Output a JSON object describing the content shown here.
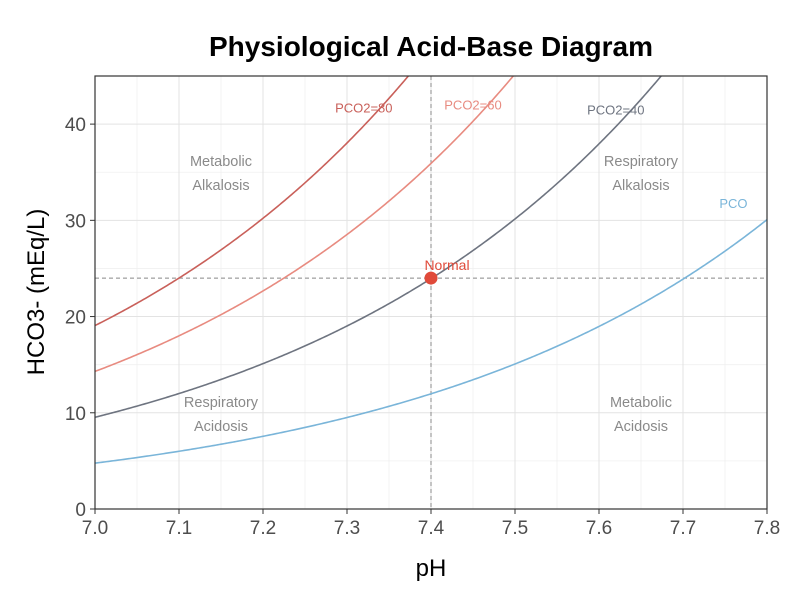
{
  "chart_data": {
    "type": "line",
    "title": "Physiological Acid-Base Diagram",
    "xlabel": "pH",
    "ylabel": "HCO3- (mEq/L)",
    "xlim": [
      7.0,
      7.8
    ],
    "ylim": [
      0,
      45
    ],
    "x_ticks": [
      "7.0",
      "7.1",
      "7.2",
      "7.3",
      "7.4",
      "7.5",
      "7.6",
      "7.7",
      "7.8"
    ],
    "y_ticks": [
      "0",
      "10",
      "20",
      "30",
      "40"
    ],
    "grid": true,
    "legend": "none",
    "series": [
      {
        "name": "PCO2=80",
        "pco2": 80,
        "color": "#c9605a",
        "label": "PCO2=80",
        "label_at": [
          7.32,
          41.2
        ]
      },
      {
        "name": "PCO2=60",
        "pco2": 60,
        "color": "#e88b80",
        "label": "PCO2=60",
        "label_at": [
          7.45,
          41.5
        ]
      },
      {
        "name": "PCO2=40",
        "pco2": 40,
        "color": "#6e7480",
        "label": "PCO2=40",
        "label_at": [
          7.62,
          41.0
        ]
      },
      {
        "name": "PCO",
        "pco2": 20,
        "color": "#7ab5d9",
        "label": "PCO",
        "label_at": [
          7.76,
          31.3
        ]
      }
    ],
    "reference_lines": {
      "x": 7.4,
      "y": 24
    },
    "normal_point": {
      "x": 7.4,
      "y": 24,
      "label": "Normal",
      "color": "#e04a3a"
    },
    "regions": [
      {
        "line1": "Metabolic",
        "line2": "Alkalosis",
        "x": 7.15,
        "y": 35
      },
      {
        "line1": "Respiratory",
        "line2": "Alkalosis",
        "x": 7.65,
        "y": 35
      },
      {
        "line1": "Respiratory",
        "line2": "Acidosis",
        "x": 7.15,
        "y": 10
      },
      {
        "line1": "Metabolic",
        "line2": "Acidosis",
        "x": 7.65,
        "y": 10
      }
    ]
  }
}
